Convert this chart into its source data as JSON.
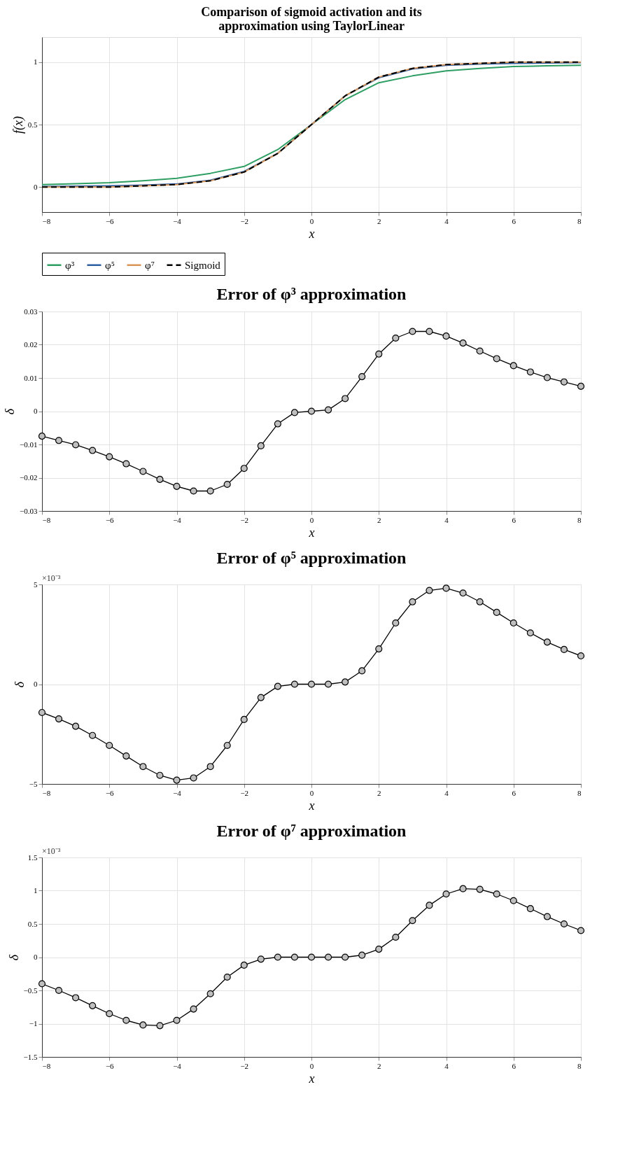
{
  "chart_data": [
    {
      "type": "line",
      "title": "Comparison of sigmoid activation and its\napproximation using TaylorLinear",
      "xlabel": "x",
      "ylabel": "f(x)",
      "x": [
        -8,
        -7,
        -6,
        -5,
        -4,
        -3,
        -2,
        -1,
        0,
        1,
        2,
        3,
        4,
        5,
        6,
        7,
        8
      ],
      "series": [
        {
          "name": "φ³",
          "color": "#2e9e63",
          "values": [
            0.02,
            0.027,
            0.035,
            0.05,
            0.07,
            0.11,
            0.165,
            0.3,
            0.5,
            0.7,
            0.835,
            0.89,
            0.93,
            0.95,
            0.965,
            0.97,
            0.975
          ]
        },
        {
          "name": "φ⁵",
          "color": "#2f5fa0",
          "values": [
            0.005,
            0.007,
            0.01,
            0.015,
            0.025,
            0.055,
            0.125,
            0.27,
            0.5,
            0.73,
            0.875,
            0.945,
            0.975,
            0.985,
            0.99,
            0.993,
            0.995
          ]
        },
        {
          "name": "φ⁷",
          "color": "#d8965a",
          "values": [
            0.0,
            0.0,
            0.0,
            0.01,
            0.02,
            0.05,
            0.12,
            0.27,
            0.5,
            0.73,
            0.88,
            0.95,
            0.98,
            0.99,
            1.0,
            1.0,
            1.0
          ]
        },
        {
          "name": "Sigmoid",
          "color": "#000000",
          "line_style": "dashed",
          "values": [
            0.0,
            0.0,
            0.0,
            0.01,
            0.02,
            0.05,
            0.12,
            0.27,
            0.5,
            0.73,
            0.88,
            0.95,
            0.98,
            0.99,
            1.0,
            1.0,
            1.0
          ]
        }
      ],
      "xlim": [
        -8,
        8
      ],
      "xticks": [
        -8,
        -6,
        -4,
        -2,
        0,
        2,
        4,
        6,
        8
      ],
      "ylim": [
        -0.2,
        1.2
      ],
      "yticks": [
        0,
        0.5,
        1
      ],
      "grid": true,
      "legend": "bottom",
      "marker": "none"
    },
    {
      "type": "line",
      "title": "Error of φ³ approximation",
      "xlabel": "x",
      "ylabel": "δ",
      "x": [
        -8,
        -7.5,
        -7,
        -6.5,
        -6,
        -5.5,
        -5,
        -4.5,
        -4,
        -3.5,
        -3,
        -2.5,
        -2,
        -1.5,
        -1,
        -0.5,
        0,
        0.5,
        1,
        1.5,
        2,
        2.5,
        3,
        3.5,
        4,
        4.5,
        5,
        5.5,
        6,
        6.5,
        7,
        7.5,
        8
      ],
      "series": [
        {
          "color": "#000000",
          "values": [
            -0.0075,
            -0.0088,
            -0.0101,
            -0.0118,
            -0.0137,
            -0.0158,
            -0.0181,
            -0.0205,
            -0.0226,
            -0.024,
            -0.024,
            -0.022,
            -0.0172,
            -0.0104,
            -0.0038,
            -0.0004,
            0,
            0.0004,
            0.0038,
            0.0104,
            0.0172,
            0.022,
            0.024,
            0.024,
            0.0226,
            0.0205,
            0.0181,
            0.0158,
            0.0137,
            0.0118,
            0.0101,
            0.0088,
            0.0075
          ]
        }
      ],
      "xlim": [
        -8,
        8
      ],
      "xticks": [
        -8,
        -6,
        -4,
        -2,
        0,
        2,
        4,
        6,
        8
      ],
      "ylim": [
        -0.03,
        0.03
      ],
      "yticks": [
        -0.03,
        -0.02,
        -0.01,
        0,
        0.01,
        0.02,
        0.03
      ],
      "grid": true,
      "legend": false,
      "marker": "circle"
    },
    {
      "type": "line",
      "title": "Error of φ⁵ approximation",
      "xlabel": "x",
      "ylabel": "δ",
      "annotations": [
        "×10⁻³"
      ],
      "x": [
        -8,
        -7.5,
        -7,
        -6.5,
        -6,
        -5.5,
        -5,
        -4.5,
        -4,
        -3.5,
        -3,
        -2.5,
        -2,
        -1.5,
        -1,
        -0.5,
        0,
        0.5,
        1,
        1.5,
        2,
        2.5,
        3,
        3.5,
        4,
        4.5,
        5,
        5.5,
        6,
        6.5,
        7,
        7.5,
        8
      ],
      "series": [
        {
          "color": "#000000",
          "values": [
            -1.42,
            -1.74,
            -2.11,
            -2.57,
            -3.07,
            -3.6,
            -4.13,
            -4.57,
            -4.81,
            -4.7,
            -4.13,
            -3.07,
            -1.77,
            -0.67,
            -0.11,
            0,
            0,
            0,
            0.11,
            0.67,
            1.77,
            3.07,
            4.13,
            4.7,
            4.81,
            4.57,
            4.13,
            3.6,
            3.07,
            2.57,
            2.11,
            1.74,
            1.42
          ]
        }
      ],
      "xlim": [
        -8,
        8
      ],
      "xticks": [
        -8,
        -6,
        -4,
        -2,
        0,
        2,
        4,
        6,
        8
      ],
      "ylim": [
        -5,
        5
      ],
      "yticks": [
        -5,
        0,
        5
      ],
      "grid": true,
      "legend": false,
      "marker": "circle"
    },
    {
      "type": "line",
      "title": "Error of φ⁷ approximation",
      "xlabel": "x",
      "ylabel": "δ",
      "annotations": [
        "×10⁻³"
      ],
      "x": [
        -8,
        -7.5,
        -7,
        -6.5,
        -6,
        -5.5,
        -5,
        -4.5,
        -4,
        -3.5,
        -3,
        -2.5,
        -2,
        -1.5,
        -1,
        -0.5,
        0,
        0.5,
        1,
        1.5,
        2,
        2.5,
        3,
        3.5,
        4,
        4.5,
        5,
        5.5,
        6,
        6.5,
        7,
        7.5,
        8
      ],
      "series": [
        {
          "color": "#000000",
          "values": [
            -0.4,
            -0.5,
            -0.61,
            -0.73,
            -0.85,
            -0.95,
            -1.02,
            -1.03,
            -0.95,
            -0.78,
            -0.55,
            -0.3,
            -0.12,
            -0.03,
            0,
            0,
            0,
            0,
            0,
            0.03,
            0.12,
            0.3,
            0.55,
            0.78,
            0.95,
            1.03,
            1.02,
            0.95,
            0.85,
            0.73,
            0.61,
            0.5,
            0.4
          ]
        }
      ],
      "xlim": [
        -8,
        8
      ],
      "xticks": [
        -8,
        -6,
        -4,
        -2,
        0,
        2,
        4,
        6,
        8
      ],
      "ylim": [
        -1.5,
        1.5
      ],
      "yticks": [
        -1.5,
        -1,
        -0.5,
        0,
        0.5,
        1,
        1.5
      ],
      "grid": true,
      "legend": false,
      "marker": "circle"
    }
  ]
}
